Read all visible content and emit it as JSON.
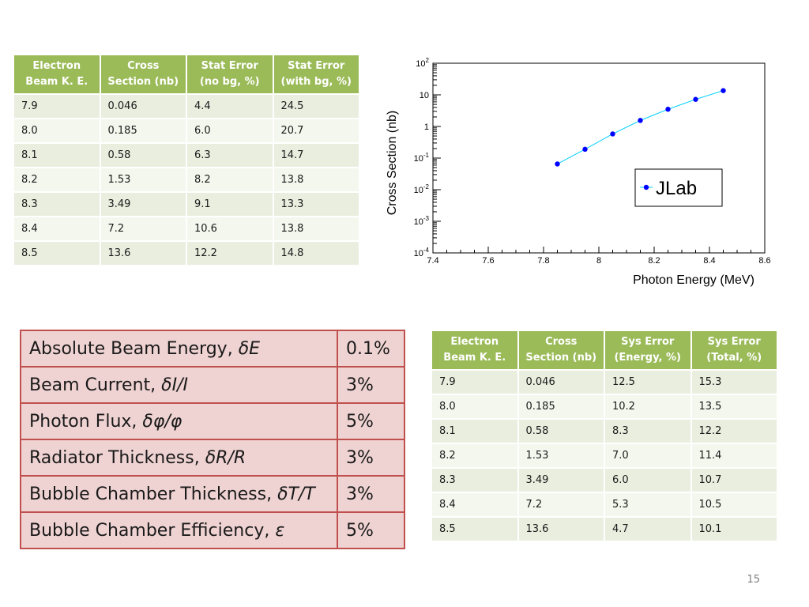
{
  "stat_table": {
    "headers": [
      [
        "Electron",
        "Beam K. E."
      ],
      [
        "Cross",
        "Section (nb)"
      ],
      [
        "Stat Error",
        "(no bg, %)"
      ],
      [
        "Stat Error",
        "(with bg, %)"
      ]
    ],
    "rows": [
      [
        "7.9",
        "0.046",
        "4.4",
        "24.5"
      ],
      [
        "8.0",
        "0.185",
        "6.0",
        "20.7"
      ],
      [
        "8.1",
        "0.58",
        "6.3",
        "14.7"
      ],
      [
        "8.2",
        "1.53",
        "8.2",
        "13.8"
      ],
      [
        "8.3",
        "3.49",
        "9.1",
        "13.3"
      ],
      [
        "8.4",
        "7.2",
        "10.6",
        "13.8"
      ],
      [
        "8.5",
        "13.6",
        "12.2",
        "14.8"
      ]
    ]
  },
  "sys_table": {
    "headers": [
      [
        "Electron",
        "Beam K. E."
      ],
      [
        "Cross",
        "Section (nb)"
      ],
      [
        "Sys Error",
        "(Energy, %)"
      ],
      [
        "Sys Error",
        "(Total, %)"
      ]
    ],
    "rows": [
      [
        "7.9",
        "0.046",
        "12.5",
        "15.3"
      ],
      [
        "8.0",
        "0.185",
        "10.2",
        "13.5"
      ],
      [
        "8.1",
        "0.58",
        "8.3",
        "12.2"
      ],
      [
        "8.2",
        "1.53",
        "7.0",
        "11.4"
      ],
      [
        "8.3",
        "3.49",
        "6.0",
        "10.7"
      ],
      [
        "8.4",
        "7.2",
        "5.3",
        "10.5"
      ],
      [
        "8.5",
        "13.6",
        "4.7",
        "10.1"
      ]
    ]
  },
  "error_table": {
    "rows": [
      {
        "label": "Absolute Beam Energy, ",
        "symbol": "δE",
        "value": "0.1%"
      },
      {
        "label": "Beam Current, ",
        "symbol": "δI/I",
        "value": "3%"
      },
      {
        "label": "Photon Flux, ",
        "symbol": "δφ/φ",
        "value": "5%"
      },
      {
        "label": "Radiator Thickness, ",
        "symbol": "δR/R",
        "value": "3%"
      },
      {
        "label": "Bubble Chamber Thickness, ",
        "symbol": "δT/T",
        "value": "3%"
      },
      {
        "label": "Bubble Chamber Efficiency, ",
        "symbol": "ε",
        "value": "5%"
      }
    ]
  },
  "chart_data": {
    "type": "scatter",
    "xlabel": "Photon Energy (MeV)",
    "ylabel": "Cross Section (nb)",
    "xlim": [
      7.4,
      8.6
    ],
    "ylim": [
      0.0001,
      100
    ],
    "log_y": true,
    "grid": true,
    "legend_position": "right",
    "x_tick_labels": [
      "7.4",
      "7.6",
      "7.8",
      "8",
      "8.2",
      "8.4",
      "8.6"
    ],
    "y_tick_labels": [
      {
        "value": 100,
        "base": "10",
        "sup": "2"
      },
      {
        "value": 10,
        "base": "10",
        "sup": ""
      },
      {
        "value": 1,
        "base": "1",
        "sup": ""
      },
      {
        "value": 0.1,
        "base": "10",
        "sup": "-1"
      },
      {
        "value": 0.01,
        "base": "10",
        "sup": "-2"
      },
      {
        "value": 0.001,
        "base": "10",
        "sup": "-3"
      },
      {
        "value": 0.0001,
        "base": "10",
        "sup": "-4"
      }
    ],
    "series": [
      {
        "name": "JLab",
        "marker_color": "#0000ff",
        "line_color": "#00d0ff",
        "x": [
          7.85,
          7.95,
          8.05,
          8.15,
          8.25,
          8.35,
          8.45
        ],
        "y": [
          0.065,
          0.19,
          0.58,
          1.55,
          3.5,
          7.2,
          13.6
        ]
      }
    ]
  },
  "slide_number": "15"
}
